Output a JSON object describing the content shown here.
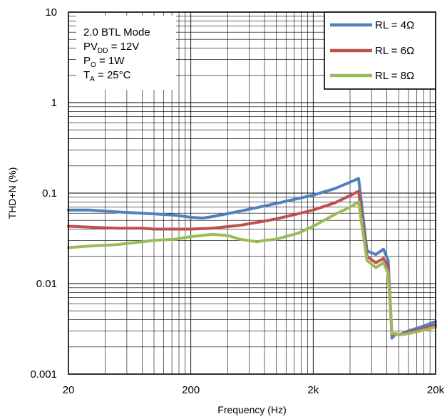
{
  "chart_data": {
    "type": "line",
    "xlabel": "Frequency (Hz)",
    "ylabel": "THD+N (%)",
    "xscale": "log",
    "yscale": "log",
    "xlim": [
      20,
      20000
    ],
    "ylim": [
      0.001,
      10
    ],
    "grid": true,
    "x_tick_labels": [
      {
        "value": 20,
        "label": "20"
      },
      {
        "value": 200,
        "label": "200"
      },
      {
        "value": 2000,
        "label": "2k"
      },
      {
        "value": 20000,
        "label": "20k"
      }
    ],
    "y_tick_labels": [
      {
        "value": 10,
        "label": "10"
      },
      {
        "value": 1,
        "label": "1"
      },
      {
        "value": 0.1,
        "label": "0.1"
      },
      {
        "value": 0.01,
        "label": "0.01"
      },
      {
        "value": 0.001,
        "label": "0.001"
      }
    ],
    "annotation": {
      "lines": [
        {
          "main": "2.0 BTL Mode",
          "sub": "",
          "rest": ""
        },
        {
          "main": "PV",
          "sub": "DD",
          "rest": " = 12V"
        },
        {
          "main": "P",
          "sub": "O",
          "rest": " = 1W"
        },
        {
          "main": "T",
          "sub": "A",
          "rest": " = 25°C"
        }
      ]
    },
    "legend_position": "top-right",
    "series": [
      {
        "name": "RL = 4Ω",
        "color": "#4F81BD",
        "x": [
          20,
          30,
          50,
          80,
          100,
          150,
          200,
          250,
          300,
          500,
          800,
          1000,
          1500,
          2000,
          3000,
          4000,
          4700,
          5500,
          6500,
          7500,
          8200,
          8800,
          9500,
          10000,
          12000,
          15000,
          20000
        ],
        "y": [
          0.065,
          0.065,
          0.062,
          0.06,
          0.059,
          0.057,
          0.054,
          0.053,
          0.055,
          0.063,
          0.072,
          0.077,
          0.087,
          0.095,
          0.112,
          0.132,
          0.145,
          0.023,
          0.021,
          0.024,
          0.018,
          0.0025,
          0.0028,
          0.0027,
          0.003,
          0.0033,
          0.0038
        ]
      },
      {
        "name": "RL = 6Ω",
        "color": "#C0504D",
        "x": [
          20,
          30,
          50,
          80,
          100,
          150,
          200,
          300,
          500,
          800,
          1000,
          1500,
          2000,
          3000,
          4000,
          4700,
          5500,
          6500,
          7500,
          8200,
          8800,
          9500,
          10000,
          12000,
          15000,
          20000
        ],
        "y": [
          0.043,
          0.042,
          0.041,
          0.041,
          0.04,
          0.04,
          0.04,
          0.041,
          0.044,
          0.049,
          0.052,
          0.059,
          0.065,
          0.078,
          0.094,
          0.105,
          0.02,
          0.017,
          0.019,
          0.015,
          0.0027,
          0.0028,
          0.0027,
          0.0029,
          0.0031,
          0.0035
        ]
      },
      {
        "name": "RL = 8Ω",
        "color": "#9BBB59",
        "x": [
          20,
          30,
          50,
          80,
          100,
          150,
          200,
          300,
          400,
          500,
          700,
          800,
          1000,
          1500,
          2000,
          3000,
          4000,
          4700,
          5500,
          6500,
          7500,
          8200,
          8800,
          9500,
          10000,
          12000,
          15000,
          20000
        ],
        "y": [
          0.025,
          0.026,
          0.027,
          0.029,
          0.03,
          0.031,
          0.033,
          0.035,
          0.034,
          0.031,
          0.029,
          0.03,
          0.031,
          0.036,
          0.043,
          0.058,
          0.07,
          0.08,
          0.018,
          0.015,
          0.017,
          0.013,
          0.0028,
          0.0028,
          0.0027,
          0.0028,
          0.003,
          0.0033
        ]
      }
    ]
  }
}
